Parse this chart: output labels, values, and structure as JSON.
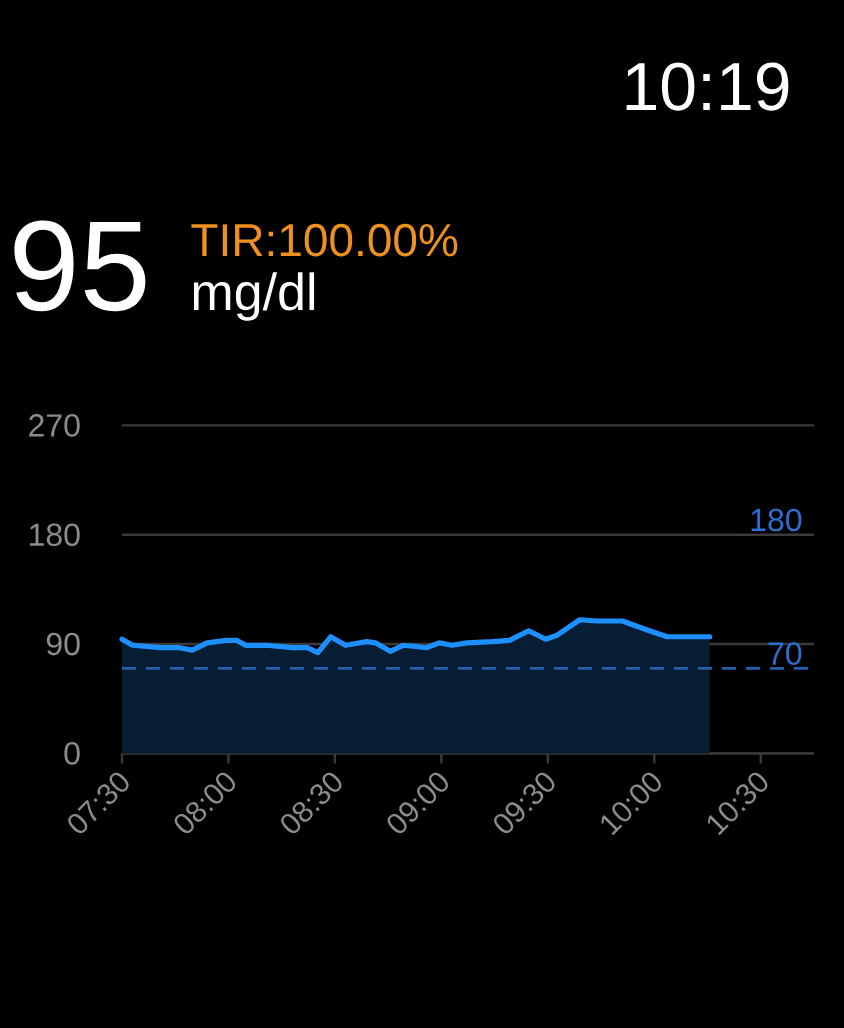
{
  "chart_data": {
    "type": "area",
    "annotations": [
      "10:19",
      "95",
      "TIR:100.00%",
      "mg/dl"
    ],
    "x": [
      7.5,
      7.55,
      7.68,
      7.77,
      7.83,
      7.9,
      7.99,
      8.04,
      8.08,
      8.18,
      8.3,
      8.37,
      8.42,
      8.48,
      8.55,
      8.65,
      8.69,
      8.76,
      8.82,
      8.88,
      8.93,
      8.99,
      9.05,
      9.12,
      9.24,
      9.32,
      9.41,
      9.49,
      9.54,
      9.65,
      9.73,
      9.85,
      9.96,
      10.06,
      10.26
    ],
    "series": [
      {
        "color": "#1E8FFF",
        "values": [
          94,
          89,
          87,
          87,
          85,
          91,
          93,
          93,
          89,
          89,
          87,
          87,
          83,
          96,
          89,
          92,
          91,
          84,
          89,
          88,
          87,
          91,
          89,
          91,
          92,
          93,
          101,
          94,
          97,
          110,
          109,
          109,
          102,
          96,
          96
        ]
      }
    ],
    "xlim": [
      7.5,
      10.75
    ],
    "xticks": [
      {
        "value": 7.5,
        "label": "07:30"
      },
      {
        "value": 8,
        "label": "08:00"
      },
      {
        "value": 8.5,
        "label": "08:30"
      },
      {
        "value": 9,
        "label": "09:00"
      },
      {
        "value": 9.5,
        "label": "09:30"
      },
      {
        "value": 10,
        "label": "10:00"
      },
      {
        "value": 10.5,
        "label": "10:30"
      }
    ],
    "ylim": [
      0,
      270
    ],
    "yticks": [
      0,
      90,
      180,
      270
    ],
    "grid": "y",
    "marker": "none",
    "ref_lines": [
      {
        "axis": "y",
        "value": 180,
        "label": "180",
        "color": "#3A3A3A",
        "line_style": "solid"
      },
      {
        "axis": "y",
        "value": 70,
        "label": "70",
        "color": "#1F5FAE",
        "line_style": "dashed"
      }
    ]
  }
}
